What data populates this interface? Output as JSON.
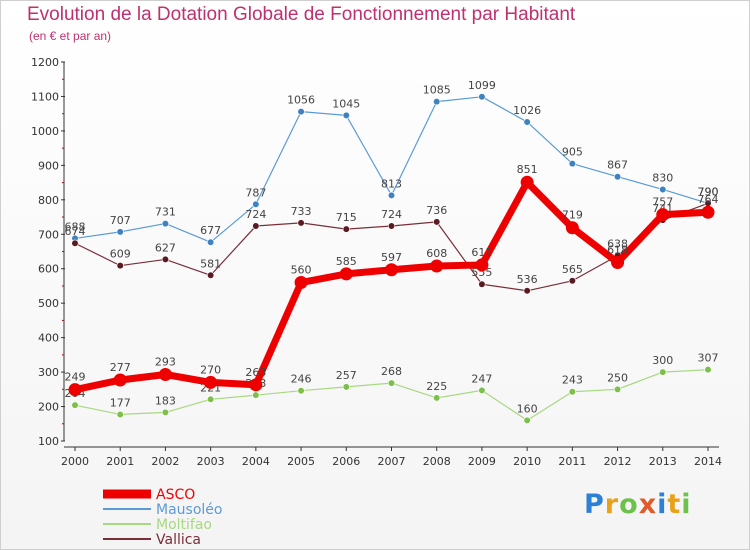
{
  "title": "Evolution de la Dotation Globale de Fonctionnement par Habitant",
  "subtitle": "(en € et par an)",
  "logo": "Proxiti",
  "chart_data": {
    "type": "line",
    "title": "Evolution de la Dotation Globale de Fonctionnement par Habitant",
    "subtitle": "(en € et par an)",
    "x": [
      2000,
      2001,
      2002,
      2003,
      2004,
      2005,
      2006,
      2007,
      2008,
      2009,
      2010,
      2011,
      2012,
      2013,
      2014
    ],
    "yticks": [
      100,
      200,
      300,
      400,
      500,
      600,
      700,
      800,
      900,
      1000,
      1100,
      1200
    ],
    "ylim": [
      100,
      1200
    ],
    "grid": false,
    "legend_position": "bottom-left",
    "series": [
      {
        "name": "Mausoléo",
        "color": "#5b9bd5",
        "marker": "#3f82c0",
        "width": 1.2,
        "values": [
          688,
          707,
          731,
          677,
          787,
          1056,
          1045,
          813,
          1085,
          1099,
          1026,
          905,
          867,
          830,
          790
        ]
      },
      {
        "name": "Vallica",
        "color": "#7a2e38",
        "marker": "#5a1a22",
        "width": 1.2,
        "values": [
          674,
          609,
          627,
          581,
          724,
          733,
          715,
          724,
          736,
          555,
          536,
          565,
          638,
          741,
          790
        ]
      },
      {
        "name": "Moltifao",
        "color": "#a8d880",
        "marker": "#7cc04a",
        "width": 1.2,
        "values": [
          204,
          177,
          183,
          221,
          233,
          246,
          257,
          268,
          225,
          247,
          160,
          243,
          250,
          300,
          307
        ]
      },
      {
        "name": "ASCO",
        "color": "#ee0000",
        "marker": "#ee0000",
        "width": 7,
        "values": [
          249,
          277,
          293,
          270,
          263,
          560,
          585,
          597,
          608,
          611,
          851,
          719,
          618,
          757,
          764
        ]
      }
    ],
    "legend": [
      "ASCO",
      "Mausoléo",
      "Moltifao",
      "Vallica"
    ]
  }
}
